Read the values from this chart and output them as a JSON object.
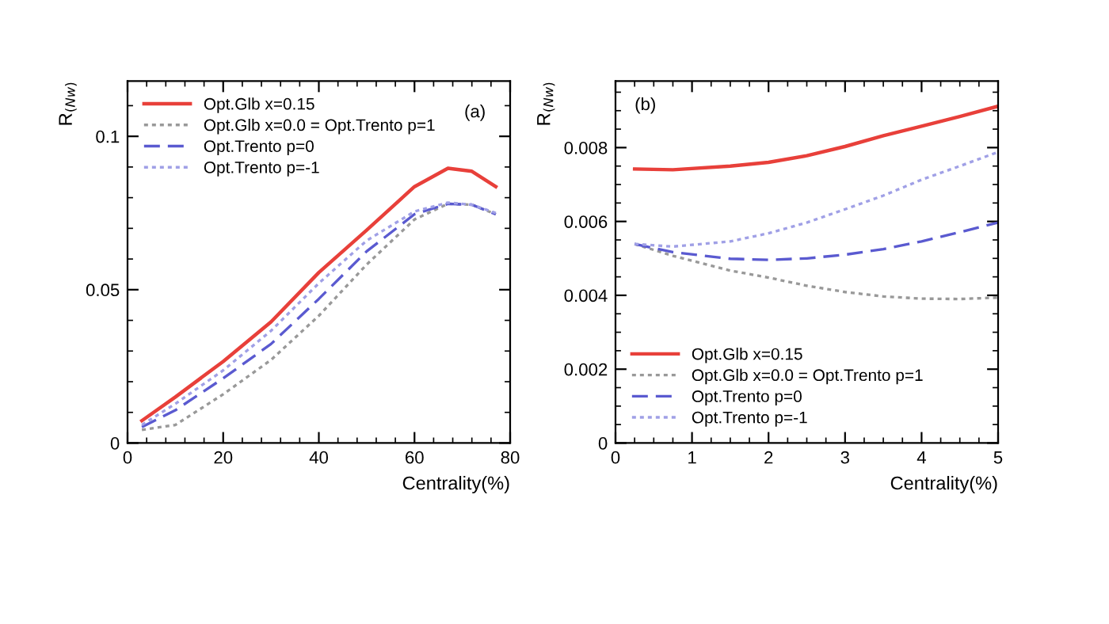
{
  "chart_data": [
    {
      "type": "line",
      "xlabel": "Centrality(%)",
      "ylabel": "R$_{(Nw)}$",
      "annotations": [
        "(a)"
      ],
      "legend": "top left",
      "xlim": [
        0,
        80
      ],
      "xticks": [
        0,
        20,
        40,
        60,
        80
      ],
      "ylim": [
        0,
        0.118
      ],
      "yticks": [
        0,
        0.05,
        0.1
      ],
      "x": [
        3,
        10,
        20,
        30,
        40,
        50,
        60,
        67,
        72,
        77
      ],
      "series": [
        {
          "name": "Opt.Glb x=0.15",
          "color": "#e8403a",
          "line_style": "solid",
          "values": [
            0.0073,
            0.015,
            0.0266,
            0.0395,
            0.0556,
            0.0694,
            0.0836,
            0.0896,
            0.0886,
            0.0836
          ]
        },
        {
          "name": "Opt.Glb x=0.0 = Opt.Trento p=1",
          "color": "#999999",
          "line_style": "dotted",
          "values": [
            0.0043,
            0.0059,
            0.0159,
            0.0271,
            0.0415,
            0.0582,
            0.0729,
            0.078,
            0.0777,
            0.0746
          ]
        },
        {
          "name": "Opt.Trento p=0",
          "color": "#5a5ad0",
          "line_style": "dashed",
          "values": [
            0.0052,
            0.0107,
            0.0211,
            0.0323,
            0.047,
            0.0625,
            0.0746,
            0.078,
            0.0777,
            0.0746
          ]
        },
        {
          "name": "Opt.Trento p=-1",
          "color": "#a0a0e6",
          "line_style": "dotted",
          "values": [
            0.0059,
            0.0128,
            0.0237,
            0.0366,
            0.0521,
            0.066,
            0.0755,
            0.0784,
            0.0777,
            0.075
          ]
        }
      ]
    },
    {
      "type": "line",
      "xlabel": "Centrality(%)",
      "ylabel": "R$_{(Nw)}$",
      "annotations": [
        "(b)"
      ],
      "legend": "bottom left",
      "xlim": [
        0,
        5
      ],
      "xticks": [
        0,
        1,
        2,
        3,
        4,
        5
      ],
      "ylim": [
        0,
        0.0098
      ],
      "yticks": [
        0,
        0.002,
        0.004,
        0.006,
        0.008
      ],
      "x": [
        0.25,
        0.75,
        1.5,
        2,
        2.5,
        3,
        3.5,
        4,
        4.5,
        5
      ],
      "series": [
        {
          "name": "Opt.Glb x=0.15",
          "color": "#e8403a",
          "line_style": "solid",
          "values": [
            0.00742,
            0.0074,
            0.0075,
            0.0076,
            0.00778,
            0.00803,
            0.00832,
            0.00858,
            0.00884,
            0.00912
          ]
        },
        {
          "name": "Opt.Glb x=0.0 = Opt.Trento p=1",
          "color": "#999999",
          "line_style": "dotted",
          "values": [
            0.00539,
            0.00507,
            0.00467,
            0.00448,
            0.00426,
            0.00409,
            0.00397,
            0.00391,
            0.0039,
            0.00394
          ]
        },
        {
          "name": "Opt.Trento p=0",
          "color": "#5a5ad0",
          "line_style": "dashed",
          "values": [
            0.00539,
            0.00517,
            0.00499,
            0.00496,
            0.005,
            0.0051,
            0.00525,
            0.00546,
            0.00571,
            0.00597
          ]
        },
        {
          "name": "Opt.Trento p=-1",
          "color": "#a0a0e6",
          "line_style": "dotted",
          "values": [
            0.00539,
            0.00532,
            0.00546,
            0.00568,
            0.00597,
            0.00633,
            0.0067,
            0.00713,
            0.0075,
            0.00788
          ]
        }
      ]
    }
  ]
}
